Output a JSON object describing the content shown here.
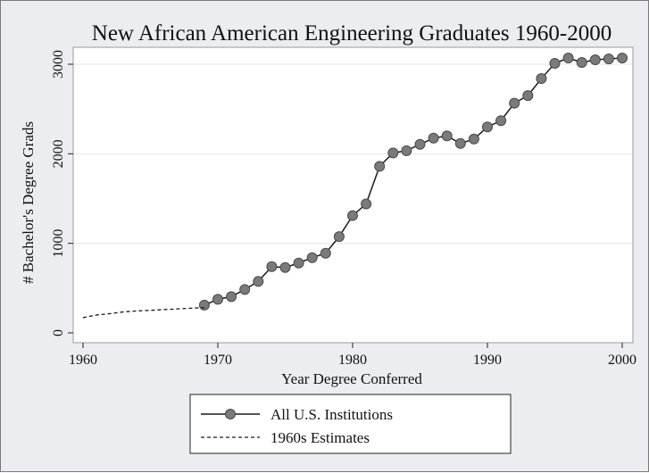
{
  "chart_data": {
    "type": "line",
    "title": "New African American Engineering Graduates 1960-2000",
    "xlabel": "Year Degree Conferred",
    "ylabel": "# Bachelor's Degree Grads",
    "xlim": [
      1960,
      2000
    ],
    "ylim": [
      0,
      3000
    ],
    "xticks": [
      1960,
      1970,
      1980,
      1990,
      2000
    ],
    "yticks": [
      0,
      1000,
      2000,
      3000
    ],
    "grid": true,
    "legend_position": "bottom",
    "series": [
      {
        "name": "All U.S. Institutions",
        "style": "solid-with-markers",
        "color": "#1a1a1a",
        "marker_color": "#7a7a7a",
        "x": [
          1969,
          1970,
          1971,
          1972,
          1973,
          1974,
          1975,
          1976,
          1977,
          1978,
          1979,
          1980,
          1981,
          1982,
          1983,
          1984,
          1985,
          1986,
          1987,
          1988,
          1989,
          1990,
          1991,
          1992,
          1993,
          1994,
          1995,
          1996,
          1997,
          1998,
          1999,
          2000
        ],
        "y": [
          310,
          375,
          405,
          485,
          575,
          740,
          730,
          780,
          840,
          890,
          1075,
          1310,
          1440,
          1860,
          2010,
          2035,
          2105,
          2175,
          2200,
          2115,
          2165,
          2300,
          2370,
          2565,
          2650,
          2840,
          3010,
          3070,
          3020,
          3050,
          3060,
          3070
        ]
      },
      {
        "name": "1960s Estimates",
        "style": "dashed",
        "color": "#1a1a1a",
        "x": [
          1960,
          1961,
          1962,
          1963,
          1964,
          1965,
          1966,
          1967,
          1968,
          1969
        ],
        "y": [
          170,
          200,
          215,
          235,
          245,
          252,
          260,
          268,
          275,
          282
        ]
      }
    ]
  }
}
